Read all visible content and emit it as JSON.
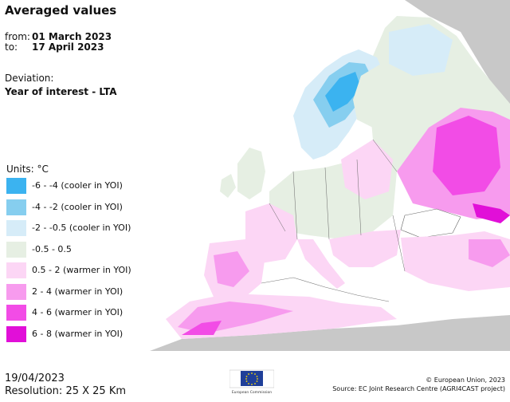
{
  "title": "Averaged values",
  "period": {
    "from_label": "from:",
    "from_value": "01 March 2023",
    "to_label": "to:",
    "to_value": "17 April 2023"
  },
  "deviation": {
    "label": "Deviation:",
    "value": "Year of interest - LTA"
  },
  "legend": {
    "units": "Units: °C",
    "items": [
      {
        "label": "-6 - -4 (cooler in YOI)",
        "color": "#3bb3f0"
      },
      {
        "label": "-4 - -2 (cooler in YOI)",
        "color": "#86ceef"
      },
      {
        "label": "-2 - -0.5 (cooler in YOI)",
        "color": "#d6ecf8"
      },
      {
        "label": "-0.5 - 0.5",
        "color": "#e6efe3"
      },
      {
        "label": "0.5 - 2 (warmer in YOI)",
        "color": "#fcd6f5"
      },
      {
        "label": "2 - 4 (warmer in YOI)",
        "color": "#f79bee"
      },
      {
        "label": "4 - 6 (warmer in YOI)",
        "color": "#f24ce6"
      },
      {
        "label": "6 - 8 (warmer in YOI)",
        "color": "#e10fd8"
      }
    ]
  },
  "footer": {
    "date": "19/04/2023",
    "resolution": "Resolution: 25 X 25 Km",
    "copyright": "© European Union, 2023",
    "source": "Source: EC Joint Research Centre (AGRI4CAST project)",
    "logo_caption": "European Commission"
  }
}
